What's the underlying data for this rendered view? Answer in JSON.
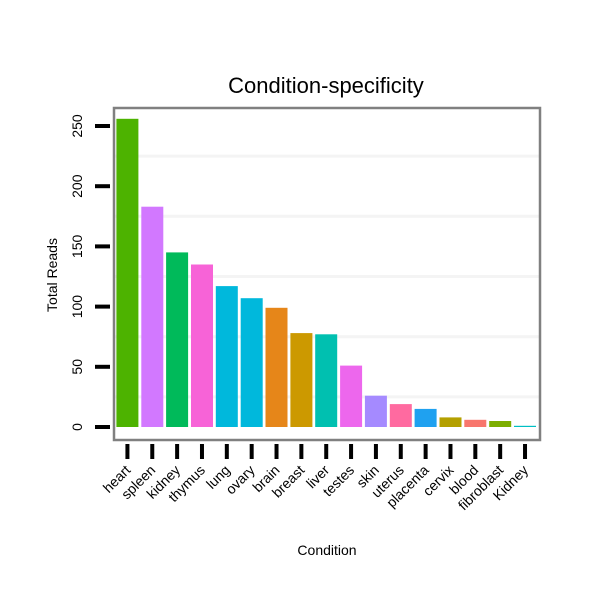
{
  "chart_data": {
    "type": "bar",
    "title": "Condition-specificity",
    "xlabel": "Condition",
    "ylabel": "Total Reads",
    "ylim": [
      0,
      260
    ],
    "yticks": [
      0,
      50,
      100,
      150,
      200,
      250
    ],
    "grid": true,
    "legend": "none",
    "categories": [
      "heart",
      "spleen",
      "kidney",
      "thymus",
      "lung",
      "ovary",
      "brain",
      "breast",
      "liver",
      "testes",
      "skin",
      "uterus",
      "placenta",
      "cervix",
      "blood",
      "fibroblast",
      "Kidney"
    ],
    "values": [
      256,
      183,
      145,
      135,
      117,
      107,
      99,
      78,
      77,
      51,
      26,
      19,
      15,
      8,
      6,
      5,
      1
    ],
    "colors": [
      "#4DB300",
      "#D278FF",
      "#00BA5A",
      "#F763D7",
      "#00B8DC",
      "#00B8DC",
      "#E68619",
      "#CC9900",
      "#00C0B0",
      "#ED67ED",
      "#A58AFF",
      "#FF6AA0",
      "#1FA1F0",
      "#B4A000",
      "#F8766D",
      "#7CAE00",
      "#00BFC4"
    ]
  }
}
